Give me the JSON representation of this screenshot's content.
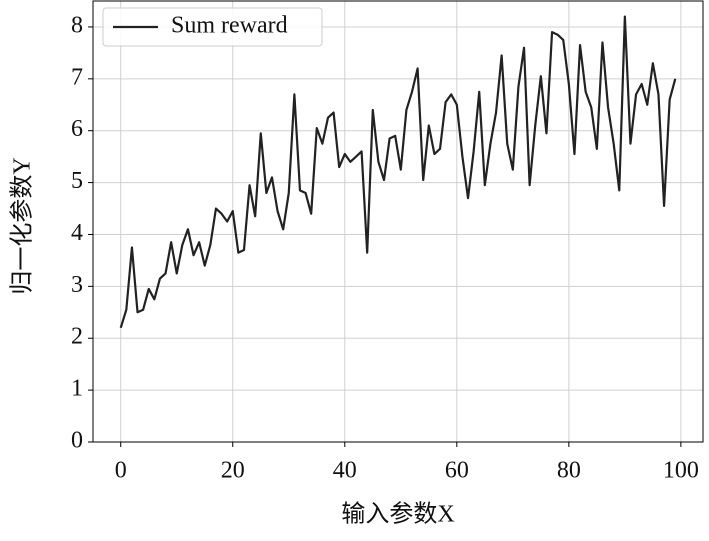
{
  "chart_data": {
    "type": "line",
    "x_label": "输入参数X",
    "y_label": "归一化参数Y",
    "x": [
      0,
      1,
      2,
      3,
      4,
      5,
      6,
      7,
      8,
      9,
      10,
      11,
      12,
      13,
      14,
      15,
      16,
      17,
      18,
      19,
      20,
      21,
      22,
      23,
      24,
      25,
      26,
      27,
      28,
      29,
      30,
      31,
      32,
      33,
      34,
      35,
      36,
      37,
      38,
      39,
      40,
      41,
      42,
      43,
      44,
      45,
      46,
      47,
      48,
      49,
      50,
      51,
      52,
      53,
      54,
      55,
      56,
      57,
      58,
      59,
      60,
      61,
      62,
      63,
      64,
      65,
      66,
      67,
      68,
      69,
      70,
      71,
      72,
      73,
      74,
      75,
      76,
      77,
      78,
      79,
      80,
      81,
      82,
      83,
      84,
      85,
      86,
      87,
      88,
      89,
      90,
      91,
      92,
      93,
      94,
      95,
      96,
      97,
      98,
      99
    ],
    "series": [
      {
        "name": "Sum reward",
        "color": "#222222",
        "values": [
          2.2,
          2.55,
          3.75,
          2.5,
          2.55,
          2.95,
          2.75,
          3.15,
          3.25,
          3.85,
          3.25,
          3.8,
          4.1,
          3.6,
          3.85,
          3.4,
          3.8,
          4.5,
          4.4,
          4.25,
          4.45,
          3.65,
          3.7,
          4.95,
          4.35,
          5.95,
          4.8,
          5.1,
          4.45,
          4.1,
          4.8,
          6.7,
          4.85,
          4.8,
          4.4,
          6.05,
          5.75,
          6.25,
          6.35,
          5.3,
          5.55,
          5.4,
          5.5,
          5.6,
          3.65,
          6.4,
          5.4,
          5.05,
          5.85,
          5.9,
          5.25,
          6.4,
          6.75,
          7.2,
          5.05,
          6.1,
          5.55,
          5.65,
          6.55,
          6.7,
          6.5,
          5.5,
          4.7,
          5.6,
          6.75,
          4.95,
          5.75,
          6.35,
          7.45,
          5.75,
          5.25,
          6.85,
          7.6,
          4.95,
          6.1,
          7.05,
          5.95,
          7.9,
          7.85,
          7.75,
          6.9,
          5.55,
          7.65,
          6.75,
          6.45,
          5.65,
          7.7,
          6.45,
          5.75,
          4.85,
          8.2,
          5.75,
          6.7,
          6.9,
          6.5,
          7.3,
          6.7,
          4.55,
          6.6,
          7.0
        ]
      }
    ],
    "xlim": [
      -4.95,
      103.95
    ],
    "ylim": [
      0,
      8.5
    ],
    "xticks": [
      0,
      20,
      40,
      60,
      80,
      100
    ],
    "yticks": [
      0,
      1,
      2,
      3,
      4,
      5,
      6,
      7,
      8
    ],
    "grid": true,
    "legend": "upper left"
  }
}
